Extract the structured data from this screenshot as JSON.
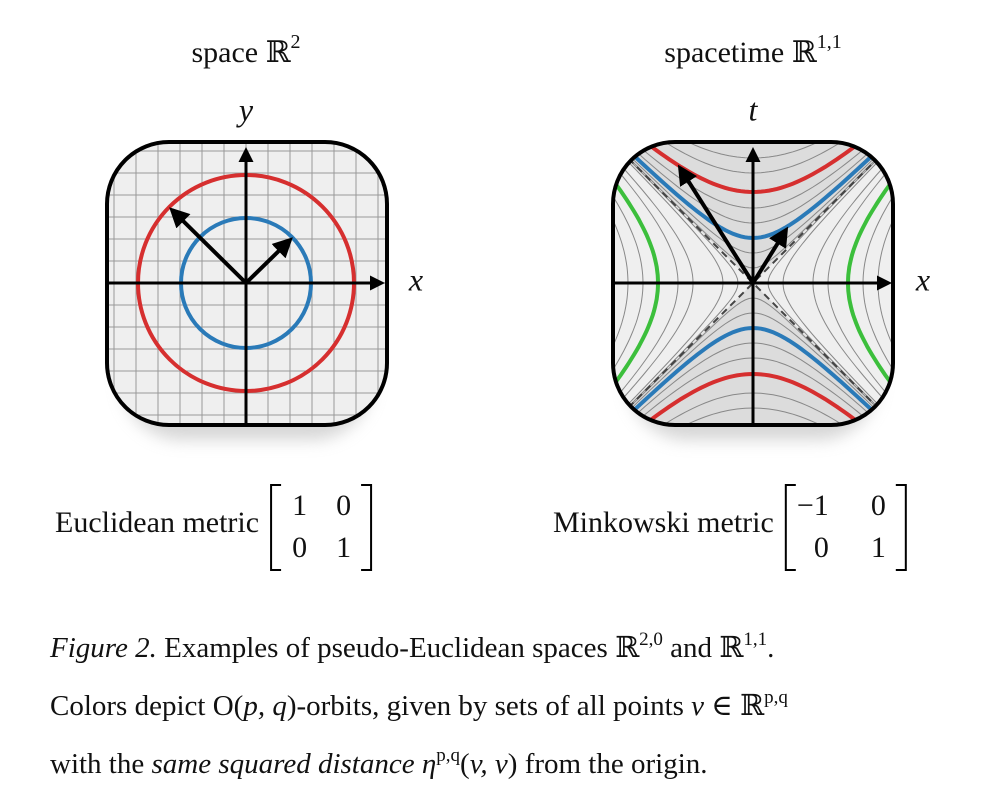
{
  "panels": [
    {
      "title": {
        "text": "space ",
        "symbol": "ℝ",
        "sup": "2"
      },
      "vertical_axis": "y",
      "horizontal_axis": "x",
      "metric_label": "Euclidean metric",
      "matrix": [
        [
          "1",
          "0"
        ],
        [
          "0",
          "1"
        ]
      ]
    },
    {
      "title": {
        "text": "spacetime ",
        "symbol": "ℝ",
        "sup": "1,1"
      },
      "vertical_axis": "t",
      "horizontal_axis": "x",
      "metric_label": "Minkowski metric",
      "matrix": [
        [
          "−1",
          "0"
        ],
        [
          "0",
          "1"
        ]
      ]
    }
  ],
  "caption": {
    "lines": [
      {
        "runs": [
          {
            "text": "Figure 2.",
            "style": "italic"
          },
          {
            "text": " Examples of pseudo-Euclidean spaces ℝ"
          },
          {
            "text": "2,0",
            "style": "sup"
          },
          {
            "text": " and ℝ"
          },
          {
            "text": "1,1",
            "style": "sup"
          },
          {
            "text": "."
          }
        ]
      },
      {
        "runs": [
          {
            "text": "Colors depict O("
          },
          {
            "text": "p, q",
            "style": "italic"
          },
          {
            "text": ")-orbits, given by sets of all points "
          },
          {
            "text": "v",
            "style": "italic"
          },
          {
            "text": " ∈ ℝ"
          },
          {
            "text": "p,q",
            "style": "sup"
          }
        ]
      },
      {
        "runs": [
          {
            "text": "with the "
          },
          {
            "text": "same squared distance",
            "style": "italic"
          },
          {
            "text": " "
          },
          {
            "text": "η",
            "style": "italic"
          },
          {
            "text": "p,q",
            "style": "sup"
          },
          {
            "text": "("
          },
          {
            "text": "v, v",
            "style": "italic"
          },
          {
            "text": ") from the origin."
          }
        ]
      }
    ]
  }
}
